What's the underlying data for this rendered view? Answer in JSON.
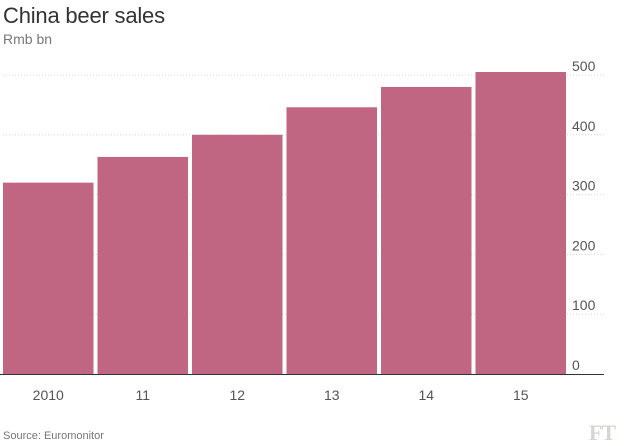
{
  "header": {
    "title": "China beer sales",
    "subtitle": "Rmb bn"
  },
  "chart_data": {
    "type": "bar",
    "title": "China beer sales",
    "ylabel": "Rmb bn",
    "xlabel": "",
    "categories": [
      "2010",
      "11",
      "12",
      "13",
      "14",
      "15"
    ],
    "values": [
      320,
      363,
      400,
      446,
      480,
      505
    ],
    "ylim": [
      0,
      500
    ],
    "yticks": [
      0,
      100,
      200,
      300,
      400,
      500
    ],
    "grid": true,
    "axis_position": "right",
    "bar_color": "#c06682"
  },
  "footer": {
    "source": "Source: Euromonitor",
    "logo_text": "FT"
  },
  "colors": {
    "bar": "#c06682",
    "grid": "#d6d6d6",
    "axis": "#333333",
    "text": "#555555"
  }
}
